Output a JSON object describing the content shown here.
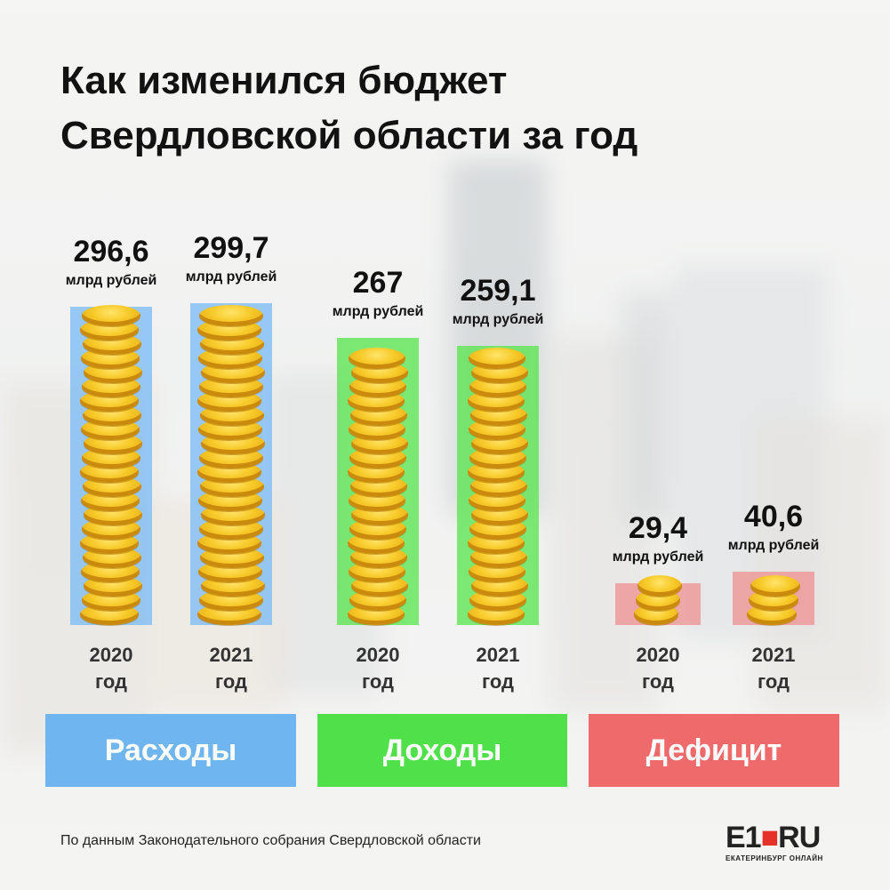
{
  "title_line1": "Как изменился бюджет",
  "title_line2": "Свердловской области за год",
  "chart_data": {
    "type": "bar",
    "unit": "млрд рублей",
    "groups": [
      {
        "name": "Расходы",
        "color": "#6fb6f0",
        "bars": [
          {
            "category": "2020\nгод",
            "value": 296.6,
            "label": "296,6"
          },
          {
            "category": "2021\nгод",
            "value": 299.7,
            "label": "299,7"
          }
        ]
      },
      {
        "name": "Доходы",
        "color": "#4fe04a",
        "bars": [
          {
            "category": "2020\nгод",
            "value": 267,
            "label": "267"
          },
          {
            "category": "2021\nгод",
            "value": 259.1,
            "label": "259,1"
          }
        ]
      },
      {
        "name": "Дефицит",
        "color": "#ef6a6a",
        "bars": [
          {
            "category": "2020\nгод",
            "value": 29.4,
            "label": "29,4"
          },
          {
            "category": "2021\nгод",
            "value": 40.6,
            "label": "40,6"
          }
        ]
      }
    ],
    "year_lines": [
      "год"
    ],
    "years": [
      "2020",
      "2021"
    ]
  },
  "categories": {
    "expenses": "Расходы",
    "income": "Доходы",
    "deficit": "Дефицит"
  },
  "source": "По данным Законодательного собрания Свердловской области",
  "logo": {
    "mark_a": "E1",
    "mark_b": "RU",
    "tagline": "ЕКАТЕРИНБУРГ ОНЛАЙН"
  },
  "colors": {
    "expenses": "#6fb6f0",
    "income": "#4fe04a",
    "deficit": "#ef6a6a",
    "coin": "#f7c928",
    "logo_accent": "#e53127"
  }
}
